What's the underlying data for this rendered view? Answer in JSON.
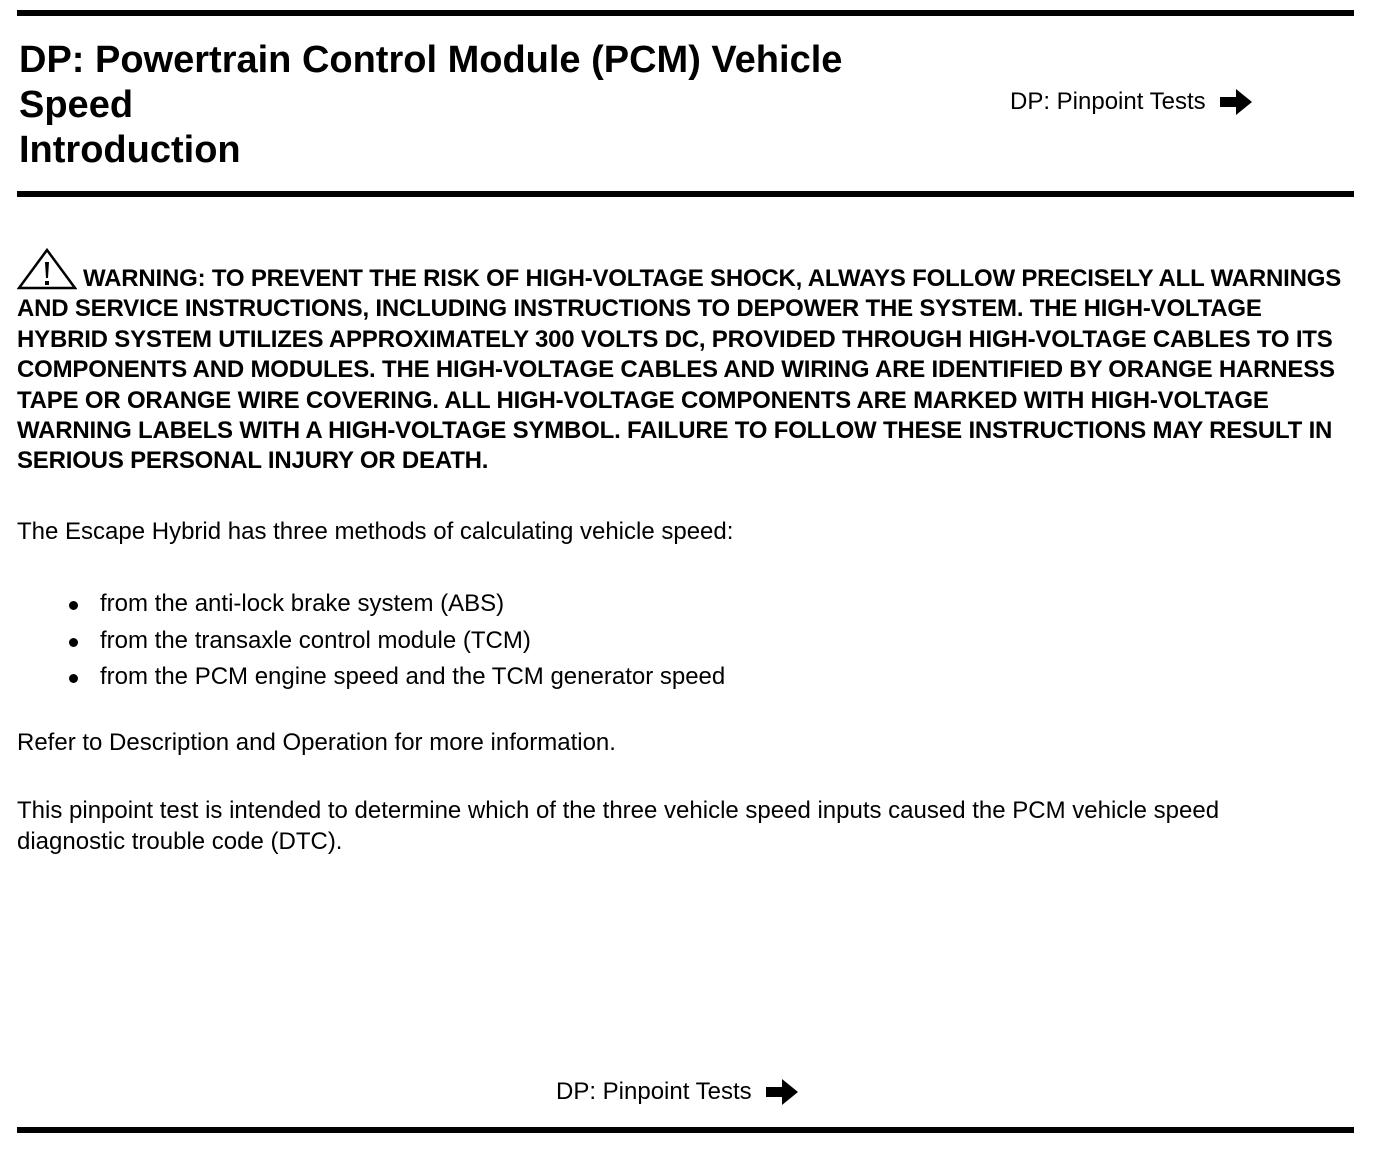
{
  "header": {
    "title_lines": [
      "DP: Powertrain Control Module (PCM) Vehicle",
      "Speed",
      "Introduction"
    ],
    "nav_link": {
      "label": "DP: Pinpoint Tests",
      "icon": "arrow-right-icon"
    }
  },
  "warning": {
    "icon": "warning-triangle-icon",
    "text": "WARNING: TO PREVENT THE RISK OF HIGH-VOLTAGE SHOCK, ALWAYS FOLLOW PRECISELY ALL WARNINGS AND SERVICE INSTRUCTIONS, INCLUDING INSTRUCTIONS TO DEPOWER THE SYSTEM. THE HIGH-VOLTAGE HYBRID SYSTEM UTILIZES APPROXIMATELY 300 VOLTS DC, PROVIDED THROUGH HIGH-VOLTAGE CABLES TO ITS COMPONENTS AND MODULES. THE HIGH-VOLTAGE CABLES AND WIRING ARE IDENTIFIED BY ORANGE HARNESS TAPE OR ORANGE WIRE COVERING. ALL HIGH-VOLTAGE COMPONENTS ARE MARKED WITH HIGH-VOLTAGE WARNING LABELS WITH A HIGH-VOLTAGE SYMBOL. FAILURE TO FOLLOW THESE INSTRUCTIONS MAY RESULT IN SERIOUS PERSONAL INJURY OR DEATH."
  },
  "body": {
    "intro": "The Escape Hybrid has three methods of calculating vehicle speed:",
    "methods": [
      "from the anti-lock brake system (ABS)",
      "from the transaxle control module (TCM)",
      "from the PCM engine speed and the TCM generator speed"
    ],
    "refer": "Refer to Description and Operation for more information.",
    "purpose": "This pinpoint test is intended to determine which of the three vehicle speed inputs caused the PCM vehicle speed diagnostic trouble code (DTC)."
  },
  "footer": {
    "nav_link": {
      "label": "DP: Pinpoint Tests",
      "icon": "arrow-right-icon"
    }
  }
}
